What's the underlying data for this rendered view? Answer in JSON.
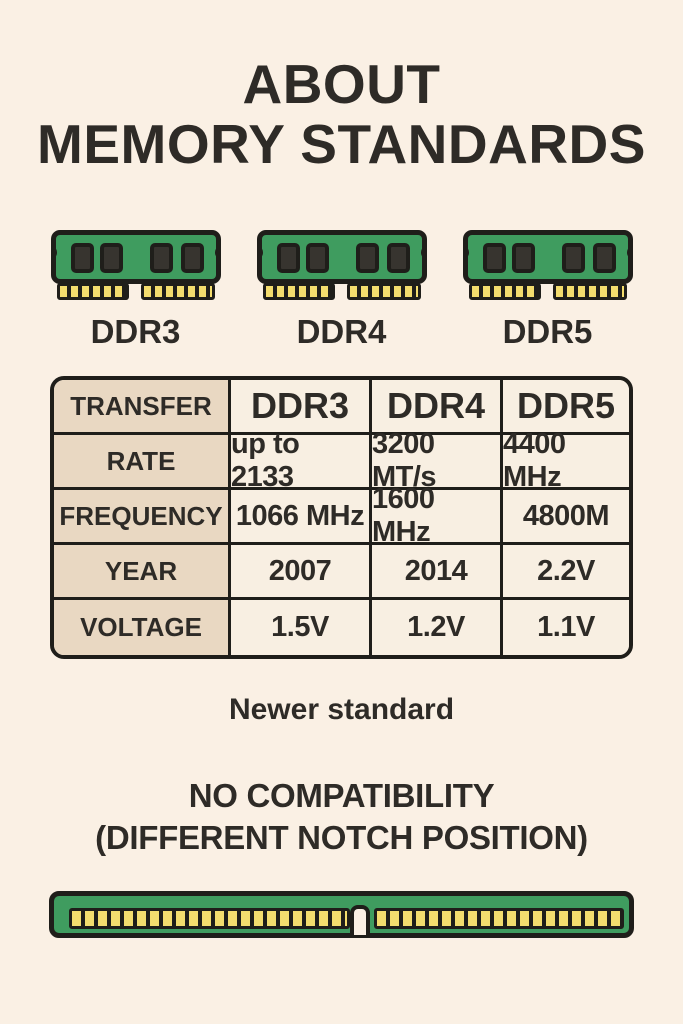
{
  "title": {
    "line1": "ABOUT",
    "line2": "MEMORY STANDARDS"
  },
  "modules": [
    {
      "label": "DDR3"
    },
    {
      "label": "DDR4"
    },
    {
      "label": "DDR5"
    }
  ],
  "table": {
    "header": {
      "label": "TRANSFER",
      "values": [
        "DDR3",
        "DDR4",
        "DDR5"
      ]
    },
    "rows": [
      {
        "label": "RATE",
        "values": [
          "up to 2133",
          "3200 MT/s",
          "4400 MHz"
        ]
      },
      {
        "label": "FREQUENCY",
        "values": [
          "1066 MHz",
          "1600 MHz",
          "4800M"
        ]
      },
      {
        "label": "YEAR",
        "values": [
          "2007",
          "2014",
          "2.2V"
        ]
      },
      {
        "label": "VOLTAGE",
        "values": [
          "1.5V",
          "1.2V",
          "1.1V"
        ]
      }
    ]
  },
  "notes": {
    "newer_standard": "Newer standard",
    "compatibility_line1": "NO COMPATIBILITY",
    "compatibility_line2": "(DIFFERENT NOTCH POSITION)"
  },
  "colors": {
    "bg": "#FAF0E4",
    "tan": "#E9D8C2",
    "cellbg": "#F8EFE2",
    "ink": "#2E2B27",
    "line": "#1F1E1A",
    "green": "#3F9C5F",
    "chip": "#37342F",
    "pin": "#F4DD6E",
    "pindark": "#1F1E1A"
  }
}
